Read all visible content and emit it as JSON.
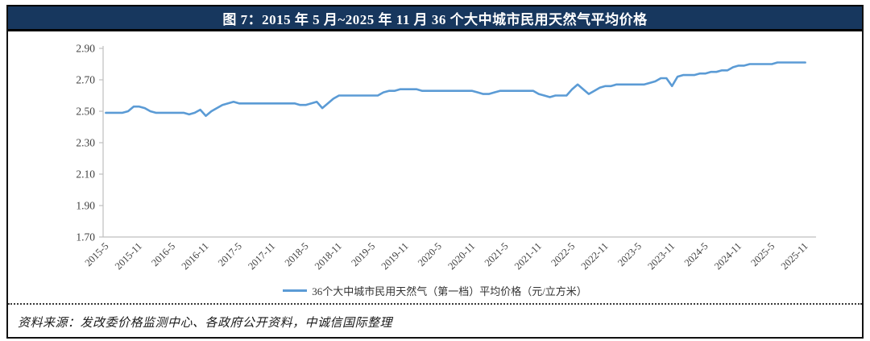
{
  "figure": {
    "title": "图 7：2015 年 5 月~2025 年 11 月 36 个大中城市民用天然气平均价格",
    "source": "资料来源：发改委价格监测中心、各政府公开资料，中诚信国际整理"
  },
  "colors": {
    "title_bar_bg": "#17375E",
    "title_text": "#FFFFFF",
    "series_line": "#5B9BD5",
    "axis_line": "#BFBFBF",
    "tick_label": "#404040",
    "frame_border": "#111111"
  },
  "chart_data": {
    "type": "line",
    "title": "图 7：2015 年 5 月~2025 年 11 月 36 个大中城市民用天然气平均价格",
    "xlabel": "",
    "ylabel": "",
    "ylim": [
      1.7,
      2.9
    ],
    "ytick_step": 0.2,
    "yticks": [
      "2.90",
      "2.70",
      "2.50",
      "2.30",
      "2.10",
      "1.90",
      "1.70"
    ],
    "xticks": [
      "2015-5",
      "2015-11",
      "2016-5",
      "2016-11",
      "2017-5",
      "2017-11",
      "2018-5",
      "2018-11",
      "2019-5",
      "2019-11",
      "2020-5",
      "2020-11",
      "2021-5",
      "2021-11",
      "2022-5",
      "2022-11",
      "2023-5",
      "2023-11",
      "2024-5",
      "2024-11",
      "2025-5",
      "2025-11"
    ],
    "xtick_interval_months": 6,
    "grid": false,
    "legend_position": "bottom",
    "series": [
      {
        "name": "36个大中城市民用天然气（第一档）平均价格（元/立方米）",
        "x_start": "2015-5",
        "x_end": "2025-11",
        "frequency": "monthly",
        "values": [
          2.49,
          2.49,
          2.49,
          2.49,
          2.5,
          2.53,
          2.53,
          2.52,
          2.5,
          2.49,
          2.49,
          2.49,
          2.49,
          2.49,
          2.49,
          2.48,
          2.49,
          2.51,
          2.47,
          2.5,
          2.52,
          2.54,
          2.55,
          2.56,
          2.55,
          2.55,
          2.55,
          2.55,
          2.55,
          2.55,
          2.55,
          2.55,
          2.55,
          2.55,
          2.55,
          2.54,
          2.54,
          2.55,
          2.56,
          2.52,
          2.55,
          2.58,
          2.6,
          2.6,
          2.6,
          2.6,
          2.6,
          2.6,
          2.6,
          2.6,
          2.62,
          2.63,
          2.63,
          2.64,
          2.64,
          2.64,
          2.64,
          2.63,
          2.63,
          2.63,
          2.63,
          2.63,
          2.63,
          2.63,
          2.63,
          2.63,
          2.63,
          2.62,
          2.61,
          2.61,
          2.62,
          2.63,
          2.63,
          2.63,
          2.63,
          2.63,
          2.63,
          2.63,
          2.61,
          2.6,
          2.59,
          2.6,
          2.6,
          2.6,
          2.64,
          2.67,
          2.64,
          2.61,
          2.63,
          2.65,
          2.66,
          2.66,
          2.67,
          2.67,
          2.67,
          2.67,
          2.67,
          2.67,
          2.68,
          2.69,
          2.71,
          2.71,
          2.66,
          2.72,
          2.73,
          2.73,
          2.73,
          2.74,
          2.74,
          2.75,
          2.75,
          2.76,
          2.76,
          2.78,
          2.79,
          2.79,
          2.8,
          2.8,
          2.8,
          2.8,
          2.8,
          2.81,
          2.81,
          2.81,
          2.81,
          2.81,
          2.81
        ]
      }
    ]
  }
}
